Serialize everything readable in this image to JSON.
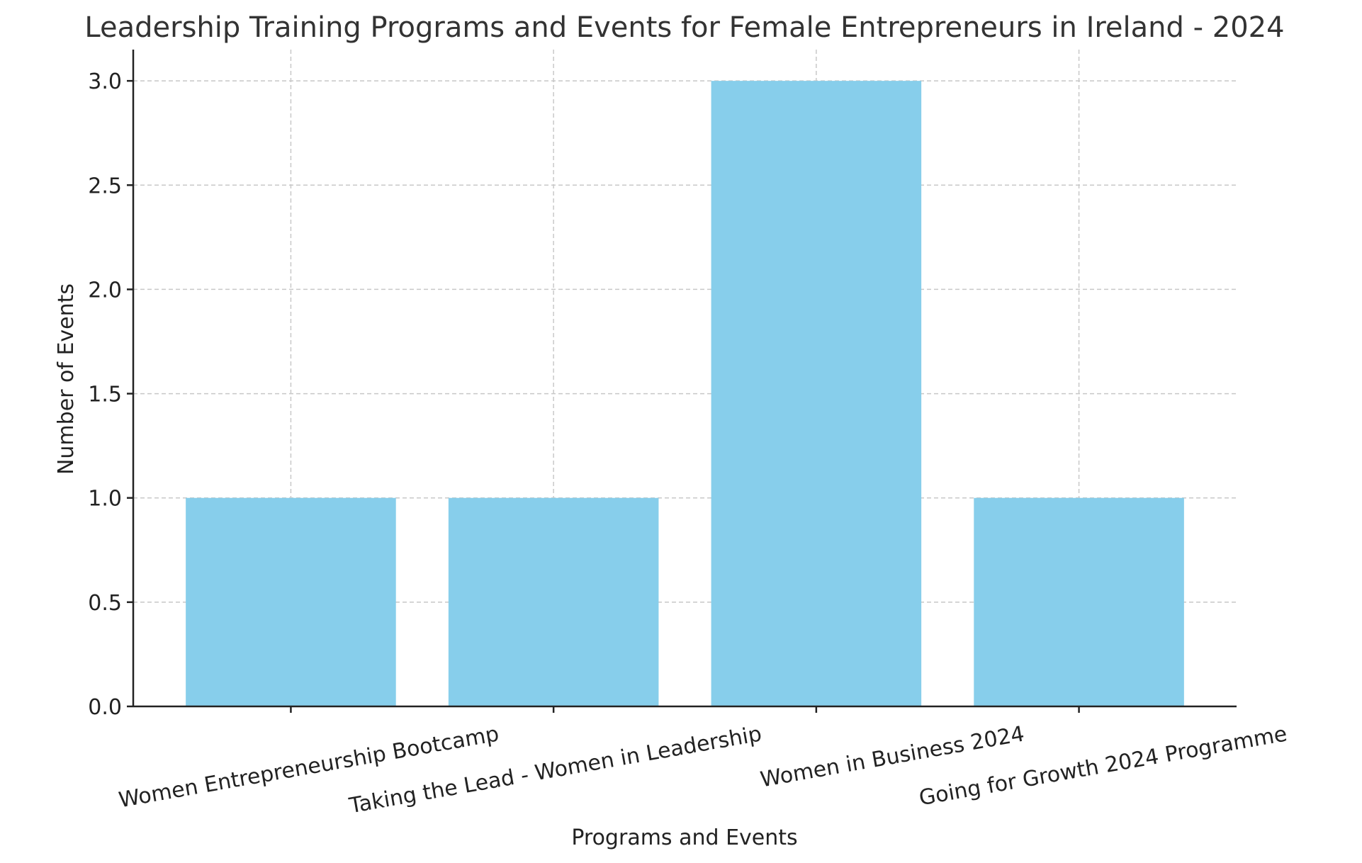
{
  "chart_data": {
    "type": "bar",
    "title": "Leadership Training Programs and Events for Female Entrepreneurs in Ireland - 2024",
    "xlabel": "Programs and Events",
    "ylabel": "Number of Events",
    "categories": [
      "Women Entrepreneurship Bootcamp",
      "Taking the Lead - Women in Leadership",
      "Women in Business 2024",
      "Going for Growth 2024 Programme"
    ],
    "values": [
      1,
      1,
      3,
      1
    ],
    "ylim": [
      0,
      3.15
    ],
    "yticks": [
      "0.0",
      "0.5",
      "1.0",
      "1.5",
      "2.0",
      "2.5",
      "3.0"
    ],
    "grid": true,
    "bar_color": "#87CEEB",
    "xtick_rotation_deg": -10
  }
}
